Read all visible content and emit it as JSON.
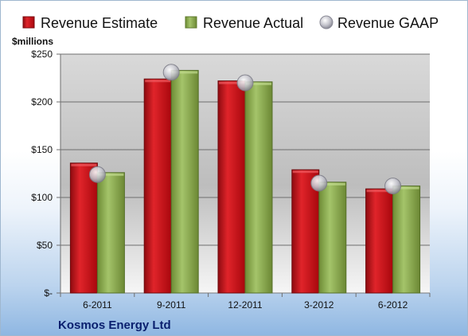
{
  "chart_data": {
    "type": "bar",
    "ylabel": "$millions",
    "ylim": [
      0,
      250
    ],
    "y_ticks": [
      "$-",
      "$50",
      "$100",
      "$150",
      "$200",
      "$250"
    ],
    "categories": [
      "6-2011",
      "9-2011",
      "12-2011",
      "3-2012",
      "6-2012"
    ],
    "series": [
      {
        "name": "Revenue Estimate",
        "kind": "bar",
        "color": "#c8141b",
        "values": [
          136,
          224,
          222,
          129,
          109
        ]
      },
      {
        "name": "Revenue Actual",
        "kind": "bar",
        "color": "#8faf4f",
        "values": [
          126,
          233,
          221,
          116,
          112
        ]
      },
      {
        "name": "Revenue GAAP",
        "kind": "marker",
        "color": "#b8b8c4",
        "values": [
          124,
          231,
          220,
          115,
          112
        ]
      }
    ],
    "legend_position": "top",
    "grid": true,
    "company": "Kosmos Energy Ltd"
  }
}
